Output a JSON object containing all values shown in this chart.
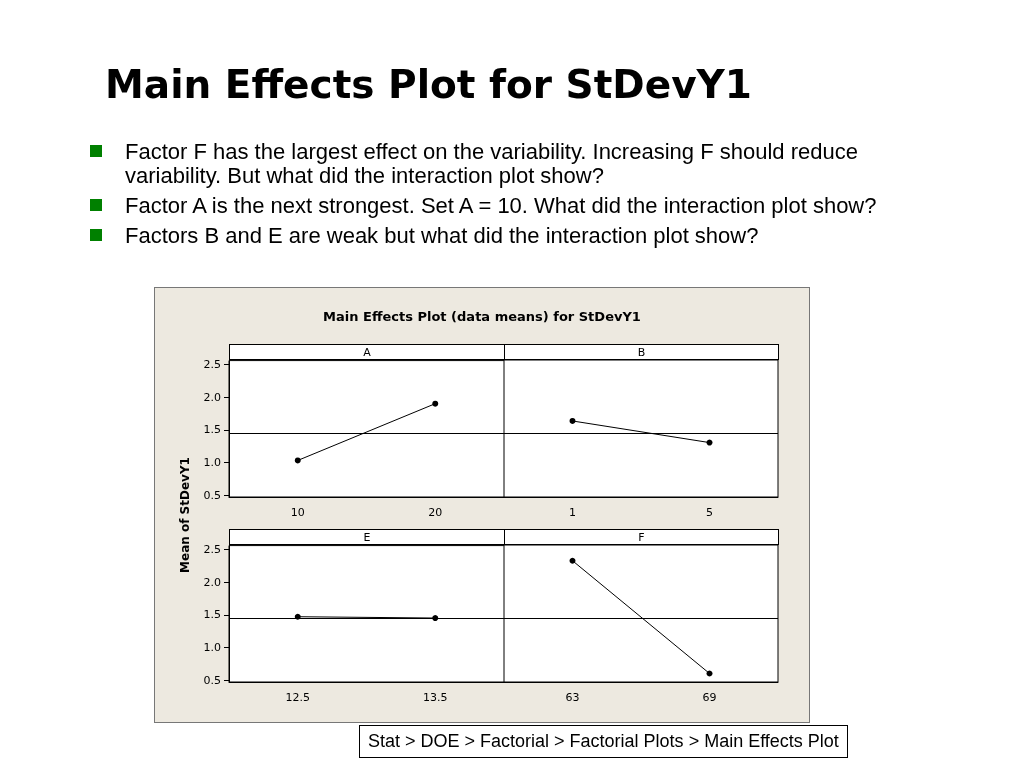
{
  "chart_data": [
    {
      "type": "line",
      "title": "A",
      "categories": [
        "10",
        "20"
      ],
      "values": [
        1.03,
        1.9
      ],
      "color": "#000000",
      "marker": "circle",
      "ylim": [
        0.47,
        2.56
      ],
      "yticks": [
        {
          "value": 0.5,
          "label": "0.5"
        },
        {
          "value": 1,
          "label": "1.0"
        },
        {
          "value": 1.5,
          "label": "1.5"
        },
        {
          "value": 2,
          "label": "2.0"
        },
        {
          "value": 2.5,
          "label": "2.5"
        }
      ],
      "ref_lines": [
        {
          "axis": "y",
          "value": 1.45
        }
      ],
      "grid": false,
      "ylabel": "Mean of StDevY1",
      "subtitle": "Main Effects Plot (data means) for StDevY1",
      "annotations": [
        "Main Effects Plot for StDevY1",
        "Factor F has the largest effect on the variability.  Increasing F should reduce variability.  But what did the interaction plot show?",
        "Factor A is the next strongest.  Set A = 10.  What did the interaction plot show?",
        "Factors B and E are weak but what did the interaction plot show?",
        "Stat > DOE > Factorial > Factorial Plots > Main Effects Plot"
      ]
    },
    {
      "type": "line",
      "title": "B",
      "categories": [
        "1",
        "5"
      ],
      "values": [
        1.63,
        1.3
      ],
      "color": "#000000",
      "marker": "circle",
      "ylim": [
        0.47,
        2.56
      ],
      "ref_lines": [
        {
          "axis": "y",
          "value": 1.45
        }
      ],
      "grid": false,
      "tick_labels": "x"
    },
    {
      "type": "line",
      "title": "E",
      "categories": [
        "12.5",
        "13.5"
      ],
      "values": [
        1.47,
        1.45
      ],
      "color": "#000000",
      "marker": "circle",
      "ylim": [
        0.47,
        2.56
      ],
      "yticks": [
        {
          "value": 0.5,
          "label": "0.5"
        },
        {
          "value": 1,
          "label": "1.0"
        },
        {
          "value": 1.5,
          "label": "1.5"
        },
        {
          "value": 2,
          "label": "2.0"
        },
        {
          "value": 2.5,
          "label": "2.5"
        }
      ],
      "ref_lines": [
        {
          "axis": "y",
          "value": 1.45
        }
      ],
      "grid": false
    },
    {
      "type": "line",
      "title": "F",
      "categories": [
        "63",
        "69"
      ],
      "values": [
        2.32,
        0.6
      ],
      "color": "#000000",
      "marker": "circle",
      "ylim": [
        0.47,
        2.56
      ],
      "ref_lines": [
        {
          "axis": "y",
          "value": 1.45
        }
      ],
      "grid": false,
      "tick_labels": "x"
    }
  ]
}
